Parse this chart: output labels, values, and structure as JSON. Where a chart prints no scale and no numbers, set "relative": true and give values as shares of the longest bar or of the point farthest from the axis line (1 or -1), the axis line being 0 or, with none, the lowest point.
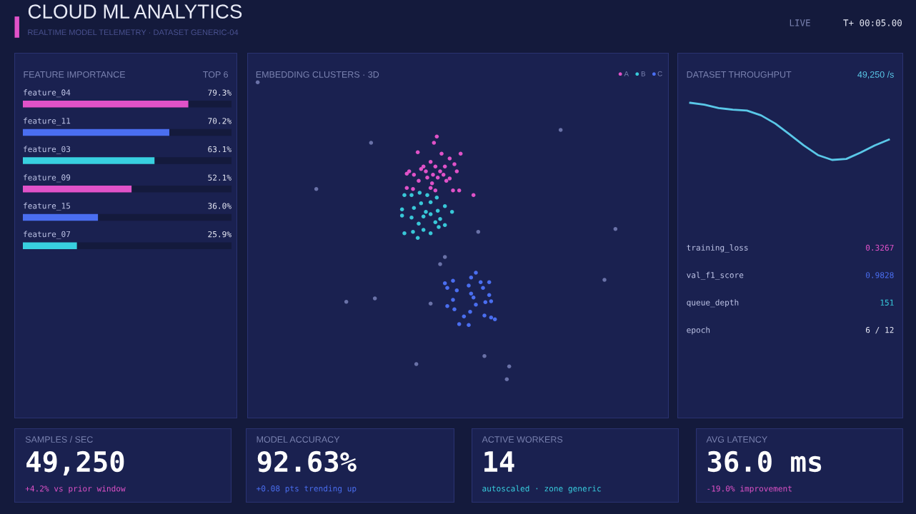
{
  "chart_data": [
    {
      "type": "other",
      "title": "CLOUD ML ANALYTICS",
      "subtitle": "REALTIME MODEL TELEMETRY · DATASET GENERIC-04",
      "annotations": [
        "LIVE",
        "T+ 00:05.00"
      ]
    },
    {
      "type": "bar",
      "orientation": "horizontal",
      "title": "FEATURE IMPORTANCE",
      "subtitle": "TOP 6",
      "categories": [
        "feature_04",
        "feature_11",
        "feature_03",
        "feature_09",
        "feature_15",
        "feature_07"
      ],
      "values": [
        79.3,
        70.2,
        63.1,
        52.1,
        36.0,
        25.9
      ],
      "colors": [
        "#e052c8",
        "#4a6ef0",
        "#38d0e0",
        "#e052c8",
        "#4a6ef0",
        "#38d0e0"
      ],
      "value_labels": [
        "79.3%",
        "70.2%",
        "63.1%",
        "52.1%",
        "36.0%",
        "25.9%"
      ],
      "xlim": [
        0,
        100
      ],
      "tick_labels": false
    },
    {
      "type": "other",
      "title": "EMBEDDING CLUSTERS · 3D",
      "annotations": [
        "A",
        "B",
        "C"
      ]
    },
    {
      "type": "line",
      "relative": true,
      "title": "DATASET THROUGHPUT",
      "subtitle": "49,250 /s",
      "marker": "none",
      "categories": [
        null,
        null,
        null,
        null,
        null,
        null,
        null,
        null,
        null,
        null,
        null,
        null,
        null,
        null,
        null
      ],
      "series": [
        {
          "color": "#5ac8e8",
          "values": [
            1.0,
            0.966,
            0.907,
            0.881,
            0.864,
            0.78,
            0.636,
            0.449,
            0.254,
            0.085,
            0.0,
            0.017,
            0.127,
            0.254,
            0.356
          ]
        }
      ],
      "annotations": [
        "training_loss",
        "0.3267",
        "val_f1_score",
        "0.9828",
        "queue_depth",
        "151",
        "epoch",
        "6 / 12"
      ]
    },
    {
      "type": "other",
      "title": "SAMPLES / SEC",
      "annotations": [
        "49,250",
        "+4.2% vs prior window"
      ]
    },
    {
      "type": "other",
      "title": "MODEL ACCURACY",
      "annotations": [
        "92.63%",
        "+0.08 pts trending up"
      ]
    },
    {
      "type": "other",
      "title": "ACTIVE WORKERS",
      "annotations": [
        "14",
        "autoscaled · zone generic"
      ]
    },
    {
      "type": "other",
      "title": "AVG LATENCY",
      "annotations": [
        "36.0 ms",
        "-19.0% improvement"
      ]
    }
  ]
}
